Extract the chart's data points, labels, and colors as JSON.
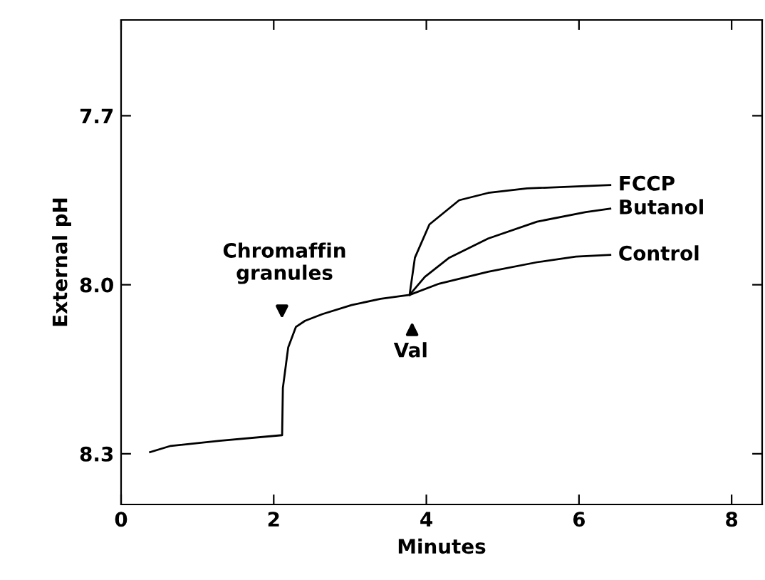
{
  "chart_data": {
    "type": "line",
    "xlabel": "Minutes",
    "ylabel": "External pH",
    "xlim": [
      0,
      8.4
    ],
    "xticks": [
      0,
      2,
      4,
      6,
      8
    ],
    "ylim": [
      8.39,
      7.53
    ],
    "yticks": [
      {
        "value": 7.7,
        "label": "7.7"
      },
      {
        "value": 8.0,
        "label": "8.0"
      },
      {
        "value": 8.3,
        "label": "8.3"
      }
    ],
    "grid": false,
    "legend": false,
    "marker": "none",
    "line_style": "solid",
    "series": [
      {
        "name": "Control",
        "color": "#000000",
        "x": [
          0.38,
          0.65,
          1.29,
          2.11,
          2.12,
          2.19,
          2.29,
          2.41,
          2.64,
          3.02,
          3.4,
          3.78,
          4.17,
          4.81,
          5.45,
          5.96,
          6.41
        ],
        "values": [
          8.297,
          8.286,
          8.277,
          8.267,
          8.183,
          8.111,
          8.075,
          8.064,
          8.052,
          8.036,
          8.025,
          8.018,
          7.998,
          7.977,
          7.96,
          7.95,
          7.947
        ]
      },
      {
        "name": "Butanol",
        "color": "#000000",
        "x": [
          3.78,
          3.98,
          4.3,
          4.81,
          5.45,
          6.09,
          6.41
        ],
        "values": [
          8.018,
          7.986,
          7.952,
          7.918,
          7.888,
          7.871,
          7.865
        ]
      },
      {
        "name": "FCCP",
        "color": "#000000",
        "x": [
          3.78,
          3.85,
          4.04,
          4.43,
          4.81,
          5.32,
          6.41
        ],
        "values": [
          8.018,
          7.952,
          7.893,
          7.85,
          7.837,
          7.829,
          7.823
        ]
      }
    ],
    "annotations": [
      "Chromaffin\ngranules",
      "Val"
    ]
  }
}
